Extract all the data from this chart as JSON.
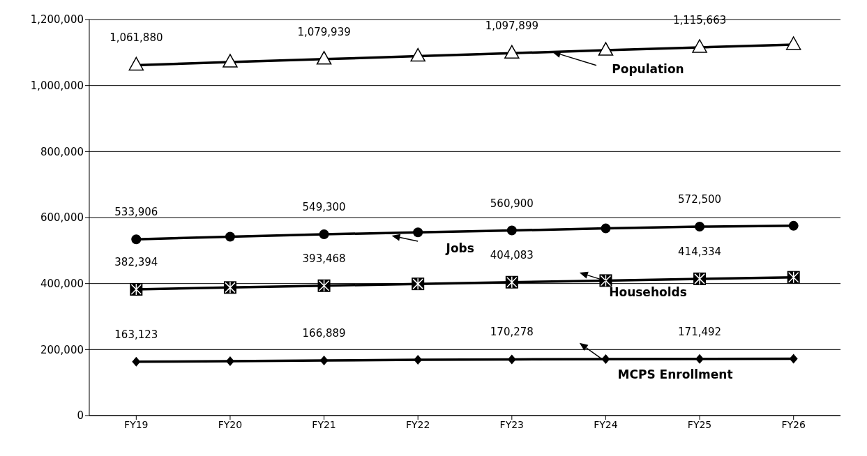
{
  "chart_data": {
    "type": "line",
    "categories": [
      "FY19",
      "FY20",
      "FY21",
      "FY22",
      "FY23",
      "FY24",
      "FY25",
      "FY26"
    ],
    "series": [
      {
        "name": "Population",
        "color": "#000000",
        "marker": "triangle",
        "values": [
          1061880,
          1071000,
          1079939,
          1089000,
          1097899,
          1107000,
          1115663,
          1124000
        ],
        "value_labels": [
          "1,061,880",
          null,
          "1,079,939",
          null,
          "1,097,899",
          null,
          "1,115,663",
          null
        ]
      },
      {
        "name": "Jobs",
        "color": "#000000",
        "marker": "circle",
        "values": [
          533906,
          542000,
          549300,
          555000,
          560900,
          567000,
          572500,
          575000
        ],
        "value_labels": [
          "533,906",
          null,
          "549,300",
          null,
          "560,900",
          null,
          "572,500",
          null
        ]
      },
      {
        "name": "Households",
        "color": "#000000",
        "marker": "square",
        "values": [
          382394,
          388000,
          393468,
          399000,
          404083,
          409000,
          414334,
          419000
        ],
        "value_labels": [
          "382,394",
          null,
          "393,468",
          null,
          "404,083",
          null,
          "414,334",
          null
        ]
      },
      {
        "name": "MCPS Enrollment",
        "color": "#000000",
        "marker": "diamond",
        "values": [
          163123,
          165000,
          166889,
          169000,
          170278,
          171000,
          171492,
          172000
        ],
        "value_labels": [
          "163,123",
          null,
          "166,889",
          null,
          "170,278",
          null,
          "171,492",
          null
        ]
      }
    ],
    "ylim": [
      0,
      1200000
    ],
    "yticks": [
      0,
      {
        "value": 200000,
        "label": "200,000"
      },
      {
        "value": 400000,
        "label": "400,000"
      },
      {
        "value": 600000,
        "label": "600,000"
      },
      {
        "value": 800000,
        "label": "800,000"
      },
      {
        "value": 1000000,
        "label": "1,000,000"
      },
      {
        "value": 1200000,
        "label": "1,200,000"
      }
    ],
    "grid": "y",
    "legend": false,
    "line_style": "solid"
  }
}
